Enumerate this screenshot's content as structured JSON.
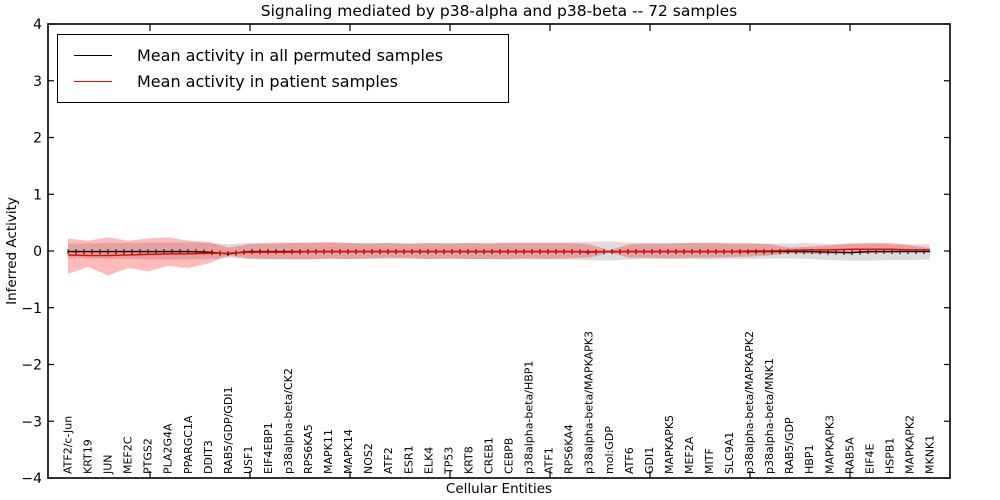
{
  "chart_data": {
    "type": "line",
    "title": "Signaling mediated by p38-alpha and p38-beta -- 72 samples",
    "xlabel": "Cellular Entities",
    "ylabel": "Inferred Activity",
    "ylim": [
      -4,
      4
    ],
    "yticks": [
      4,
      3,
      2,
      1,
      0,
      -1,
      -2,
      -3,
      -4
    ],
    "grid": false,
    "legend_position": "upper left",
    "categories": [
      "ATF2/c-Jun",
      "KRT19",
      "JUN",
      "MEF2C",
      "PTGS2",
      "PLA2G4A",
      "PPARGC1A",
      "DDIT3",
      "RAB5/GDP/GDI1",
      "USF1",
      "EIF4EBP1",
      "p38alpha-beta/CK2",
      "RPS6KA5",
      "MAPK11",
      "MAPK14",
      "NOS2",
      "ATF2",
      "ESR1",
      "ELK4",
      "TP53",
      "KRT8",
      "CREB1",
      "CEBPB",
      "p38alpha-beta/HBP1",
      "ATF1",
      "RPS6KA4",
      "p38alpha-beta/MAPKAPK3",
      "mol:GDP",
      "ATF6",
      "GDI1",
      "MAPKAPK5",
      "MEF2A",
      "MITF",
      "SLC9A1",
      "p38alpha-beta/MAPKAPK2",
      "p38alpha-beta/MNK1",
      "RAB5/GDP",
      "HBP1",
      "MAPKAPK3",
      "RAB5A",
      "EIF4E",
      "HSPB1",
      "MAPKAPK2",
      "MKNK1"
    ],
    "series": [
      {
        "name": "Mean activity in all permuted samples",
        "color": "#000000",
        "values": [
          -0.01,
          -0.01,
          -0.01,
          -0.01,
          -0.01,
          -0.01,
          -0.01,
          -0.02,
          -0.05,
          -0.01,
          -0.01,
          -0.01,
          -0.01,
          -0.01,
          -0.01,
          -0.01,
          -0.01,
          -0.01,
          -0.01,
          -0.01,
          -0.01,
          -0.01,
          -0.01,
          -0.01,
          -0.01,
          -0.01,
          -0.02,
          -0.01,
          -0.01,
          -0.01,
          -0.01,
          -0.01,
          -0.01,
          -0.01,
          -0.01,
          -0.01,
          -0.01,
          -0.01,
          -0.02,
          -0.03,
          -0.01,
          -0.01,
          -0.01,
          -0.01
        ]
      },
      {
        "name": "Mean activity in patient samples",
        "color": "#ff0000",
        "values": [
          -0.07,
          -0.08,
          -0.08,
          -0.07,
          -0.06,
          -0.05,
          -0.05,
          -0.04,
          -0.04,
          -0.02,
          -0.02,
          -0.02,
          -0.01,
          -0.01,
          -0.01,
          -0.01,
          -0.01,
          -0.01,
          -0.01,
          -0.01,
          -0.01,
          -0.01,
          -0.01,
          -0.01,
          -0.01,
          -0.01,
          -0.01,
          -0.01,
          -0.01,
          -0.01,
          -0.01,
          -0.01,
          -0.01,
          -0.01,
          0.0,
          0.0,
          0.01,
          0.02,
          0.02,
          0.03,
          0.03,
          0.03,
          0.02,
          0.02
        ]
      }
    ],
    "bands": [
      {
        "name": "permuted samples std band",
        "color": "rgba(128,128,128,0.28)",
        "upper": [
          0.13,
          0.13,
          0.14,
          0.14,
          0.15,
          0.15,
          0.15,
          0.14,
          0.12,
          0.14,
          0.15,
          0.15,
          0.14,
          0.14,
          0.14,
          0.14,
          0.14,
          0.13,
          0.14,
          0.14,
          0.14,
          0.14,
          0.15,
          0.15,
          0.15,
          0.15,
          0.16,
          0.17,
          0.15,
          0.14,
          0.14,
          0.14,
          0.15,
          0.14,
          0.14,
          0.13,
          0.13,
          0.14,
          0.12,
          0.13,
          0.13,
          0.12,
          0.12,
          0.12
        ],
        "lower": [
          -0.13,
          -0.13,
          -0.14,
          -0.14,
          -0.15,
          -0.15,
          -0.15,
          -0.14,
          -0.12,
          -0.14,
          -0.15,
          -0.15,
          -0.14,
          -0.14,
          -0.14,
          -0.14,
          -0.14,
          -0.13,
          -0.14,
          -0.14,
          -0.14,
          -0.14,
          -0.15,
          -0.15,
          -0.15,
          -0.15,
          -0.16,
          -0.17,
          -0.15,
          -0.14,
          -0.14,
          -0.14,
          -0.15,
          -0.14,
          -0.14,
          -0.13,
          -0.13,
          -0.14,
          -0.16,
          -0.17,
          -0.17,
          -0.16,
          -0.16,
          -0.15
        ]
      },
      {
        "name": "patient samples std band",
        "color": "rgba(255,0,0,0.27)",
        "upper": [
          0.22,
          0.18,
          0.24,
          0.18,
          0.22,
          0.24,
          0.18,
          0.16,
          0.06,
          0.12,
          0.13,
          0.14,
          0.15,
          0.16,
          0.14,
          0.13,
          0.14,
          0.13,
          0.14,
          0.13,
          0.14,
          0.13,
          0.14,
          0.14,
          0.14,
          0.14,
          0.12,
          0.01,
          0.12,
          0.13,
          0.13,
          0.14,
          0.14,
          0.13,
          0.13,
          0.12,
          0.06,
          0.08,
          0.1,
          0.13,
          0.14,
          0.14,
          0.1,
          0.05
        ],
        "lower": [
          -0.4,
          -0.28,
          -0.43,
          -0.3,
          -0.36,
          -0.26,
          -0.3,
          -0.22,
          -0.08,
          -0.13,
          -0.14,
          -0.14,
          -0.15,
          -0.13,
          -0.14,
          -0.13,
          -0.12,
          -0.13,
          -0.14,
          -0.13,
          -0.14,
          -0.14,
          -0.14,
          -0.13,
          -0.14,
          -0.13,
          -0.12,
          -0.03,
          -0.12,
          -0.12,
          -0.13,
          -0.12,
          -0.12,
          -0.11,
          -0.1,
          -0.08,
          -0.04,
          -0.05,
          -0.05,
          -0.04,
          -0.04,
          -0.03,
          -0.02,
          -0.01
        ]
      }
    ]
  }
}
